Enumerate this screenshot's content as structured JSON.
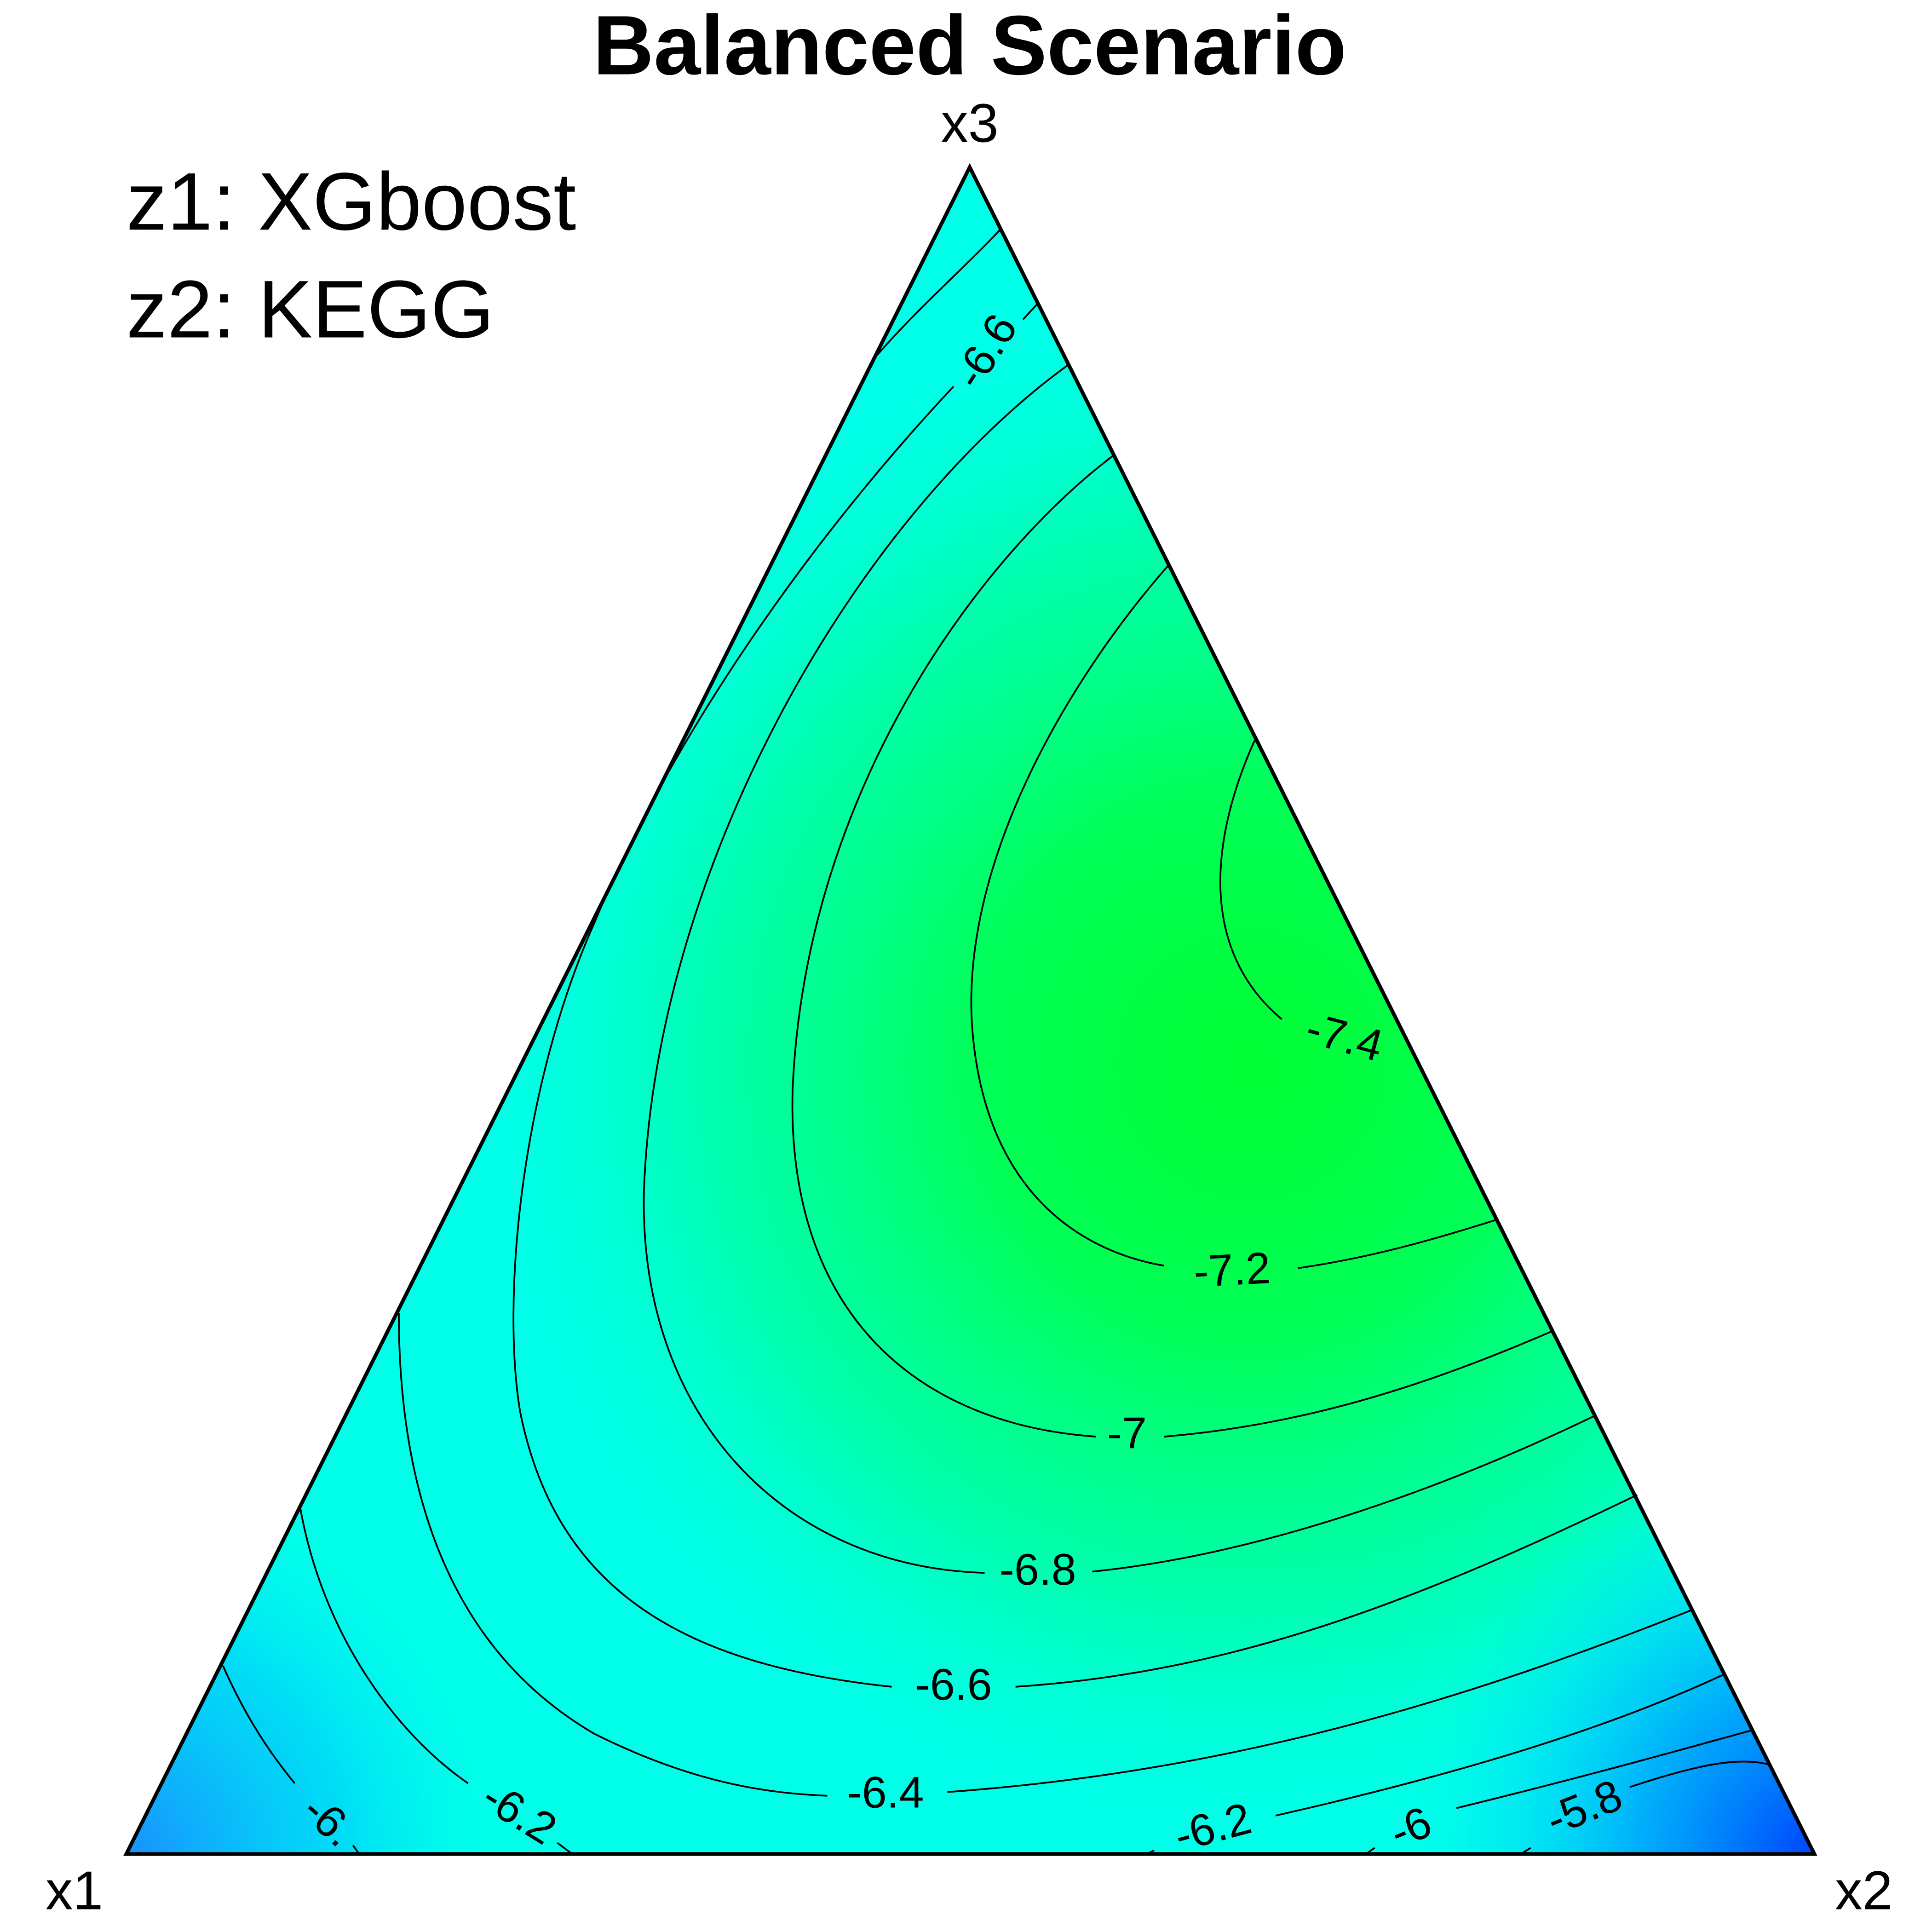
{
  "chart_data": {
    "type": "ternary-contour",
    "title": "Balanced Scenario",
    "corner_labels": [
      "x1",
      "x2",
      "x3"
    ],
    "annotations": [
      "z1: XGboost",
      "z2: KEGG"
    ],
    "contour_labels": [
      -6.6,
      -7.4,
      -7.2,
      -7,
      -6.8,
      -6.6,
      -6.4,
      -6.2,
      {
        "value": -6,
        "label": "-6."
      },
      -6.2,
      -6,
      -5.8
    ]
  }
}
